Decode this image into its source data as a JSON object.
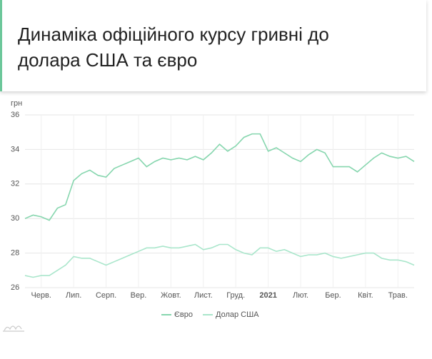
{
  "header": {
    "title": "Динаміка офіційного курсу гривні до долара США та євро"
  },
  "chart_data": {
    "type": "line",
    "y_label": "грн",
    "categories": [
      null,
      null,
      "Черв.",
      null,
      null,
      null,
      "Лип.",
      null,
      null,
      null,
      "Серп.",
      null,
      null,
      null,
      "Вер.",
      null,
      null,
      null,
      "Жовт.",
      null,
      null,
      null,
      "Лист.",
      null,
      null,
      null,
      "Груд.",
      null,
      null,
      null,
      "2021",
      null,
      null,
      null,
      "Лют.",
      null,
      null,
      null,
      "Бер.",
      null,
      null,
      null,
      "Квіт.",
      null,
      null,
      null,
      "Трав.",
      null,
      null
    ],
    "series": [
      {
        "name": "Євро",
        "color": "#86d6ae",
        "values": [
          30.0,
          30.2,
          30.1,
          29.9,
          30.6,
          30.8,
          32.2,
          32.6,
          32.8,
          32.5,
          32.4,
          32.9,
          33.1,
          33.3,
          33.5,
          33.0,
          33.3,
          33.5,
          33.4,
          33.5,
          33.4,
          33.6,
          33.4,
          33.8,
          34.3,
          33.9,
          34.2,
          34.7,
          34.9,
          34.9,
          33.9,
          34.1,
          33.8,
          33.5,
          33.3,
          33.7,
          34.0,
          33.8,
          33.0,
          33.0,
          33.0,
          32.7,
          33.1,
          33.5,
          33.8,
          33.6,
          33.5,
          33.6,
          33.3
        ]
      },
      {
        "name": "Долар США",
        "color": "#a9e6cb",
        "values": [
          26.7,
          26.6,
          26.7,
          26.7,
          27.0,
          27.3,
          27.8,
          27.7,
          27.7,
          27.5,
          27.3,
          27.5,
          27.7,
          27.9,
          28.1,
          28.3,
          28.3,
          28.4,
          28.3,
          28.3,
          28.4,
          28.5,
          28.2,
          28.3,
          28.5,
          28.5,
          28.2,
          28.0,
          27.9,
          28.3,
          28.3,
          28.1,
          28.2,
          28.0,
          27.8,
          27.9,
          27.9,
          28.0,
          27.8,
          27.7,
          27.8,
          27.9,
          28.0,
          28.0,
          27.7,
          27.6,
          27.6,
          27.5,
          27.3
        ]
      }
    ],
    "ylim": [
      26,
      36
    ],
    "yticks": [
      26,
      28,
      30,
      32,
      34,
      36
    ],
    "grid": true
  }
}
